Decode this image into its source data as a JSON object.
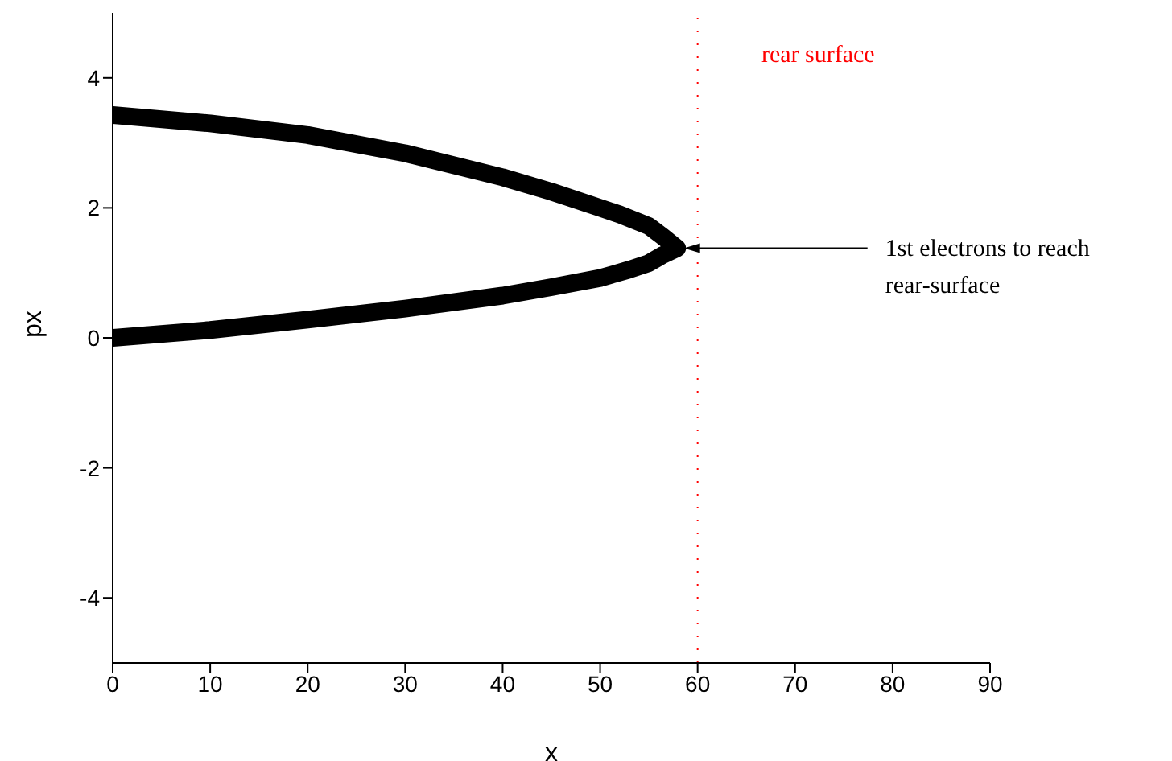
{
  "chart_data": {
    "type": "line",
    "xlabel": "x",
    "ylabel": "px",
    "x": [
      0,
      10,
      20,
      30,
      40,
      45,
      50,
      53,
      55,
      56.5,
      57.9,
      56.5,
      55,
      52,
      50,
      45,
      40,
      30,
      20,
      10,
      0
    ],
    "series": [
      {
        "color": "#000000",
        "values": [
          0,
          0.12,
          0.28,
          0.45,
          0.65,
          0.78,
          0.92,
          1.05,
          1.15,
          1.28,
          1.38,
          1.55,
          1.72,
          1.9,
          2.0,
          2.25,
          2.47,
          2.84,
          3.12,
          3.3,
          3.43
        ]
      }
    ],
    "xlim": [
      0,
      90
    ],
    "xticks": [
      0,
      10,
      20,
      30,
      40,
      50,
      60,
      70,
      80,
      90
    ],
    "ylim": [
      -5,
      5
    ],
    "yticks": [
      -4,
      -2,
      0,
      2,
      4
    ],
    "grid": false,
    "legend": false,
    "marker": "none",
    "line_style": "solid",
    "ref_lines": [
      {
        "axis": "x",
        "value": 60,
        "label": "rear surface",
        "color": "#ff0000",
        "line_style": "dotted"
      }
    ],
    "annotations": [
      {
        "text": "1st electrons to reach rear-surface",
        "x": 58.6,
        "y": 1.38
      }
    ]
  }
}
